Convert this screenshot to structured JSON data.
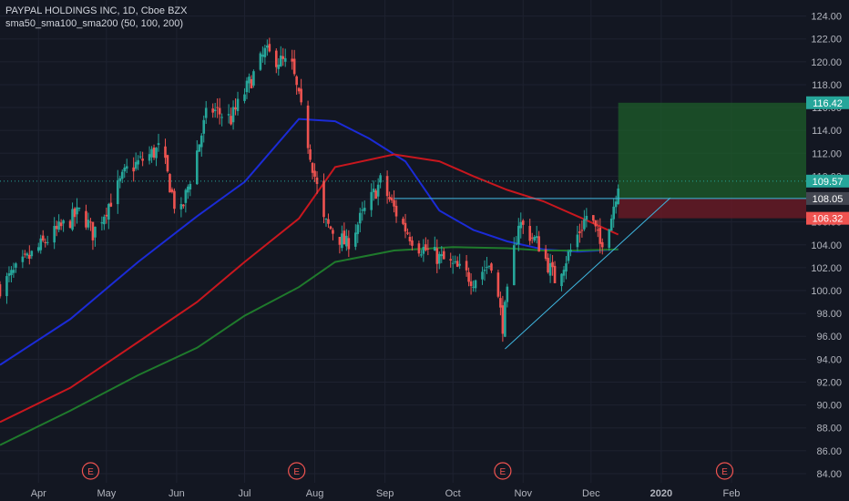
{
  "header": {
    "symbol_line": "PAYPAL HOLDINGS INC, 1D, Cboe BZX",
    "indicator_line": "sma50_sma100_sma200 (50, 100, 200)"
  },
  "colors": {
    "background": "#131722",
    "up_candle": "#26a69a",
    "down_candle": "#ef5350",
    "sma50": "#1b2bd6",
    "sma100": "#c8171e",
    "sma200": "#1f7a2c",
    "trendline": "#3fb7e0",
    "profit_zone": "#1e5e2a",
    "loss_zone": "#6b1a26"
  },
  "chart_data": {
    "type": "candlestick",
    "x_ticks": [
      "Apr",
      "May",
      "Jun",
      "Jul",
      "Aug",
      "Sep",
      "Oct",
      "Nov",
      "Dec",
      "2020",
      "Feb"
    ],
    "y_ticks": [
      "124.00",
      "122.00",
      "120.00",
      "118.00",
      "116.00",
      "114.00",
      "112.00",
      "110.00",
      "108.00",
      "106.00",
      "104.00",
      "102.00",
      "100.00",
      "98.00",
      "96.00",
      "94.00",
      "92.00",
      "90.00",
      "88.00",
      "86.00",
      "84.00"
    ],
    "ylim": [
      83.2,
      125.4
    ],
    "price_labels": [
      {
        "text": "116.42",
        "value": 116.42,
        "color": "#26a69a"
      },
      {
        "text": "109.57",
        "value": 109.57,
        "color": "#26a69a"
      },
      {
        "text": "108.05",
        "value": 108.05,
        "color": "#434651"
      },
      {
        "text": "106.32",
        "value": 106.32,
        "color": "#ef5350"
      }
    ],
    "earnings_markers": [
      {
        "label": "E",
        "date": "2019-04-24"
      },
      {
        "label": "E",
        "date": "2019-07-24"
      },
      {
        "label": "E",
        "date": "2019-10-23"
      },
      {
        "label": "E",
        "date": "2020-01-29"
      }
    ],
    "position": {
      "entry": 108.05,
      "target": 116.42,
      "stop": 106.32,
      "start": "2019-12-13",
      "end": "2020-03-05"
    },
    "horizontal_line": {
      "value": 108.05,
      "start": "2019-09-05",
      "end": "2020-03-05"
    },
    "trendline": {
      "from": [
        "2019-10-24",
        94.9
      ],
      "to": [
        "2020-01-05",
        108.1
      ]
    },
    "series": [
      {
        "name": "sma50",
        "points": [
          [
            "2019-03-15",
            93.5
          ],
          [
            "2019-04-15",
            97.5
          ],
          [
            "2019-05-15",
            102.5
          ],
          [
            "2019-06-10",
            106.5
          ],
          [
            "2019-07-01",
            109.5
          ],
          [
            "2019-07-25",
            115.0
          ],
          [
            "2019-08-10",
            114.8
          ],
          [
            "2019-08-25",
            113.3
          ],
          [
            "2019-09-10",
            111.3
          ],
          [
            "2019-09-25",
            107.0
          ],
          [
            "2019-10-10",
            105.3
          ],
          [
            "2019-10-25",
            104.3
          ],
          [
            "2019-11-10",
            103.6
          ],
          [
            "2019-11-25",
            103.4
          ],
          [
            "2019-12-13",
            103.6
          ]
        ]
      },
      {
        "name": "sma100",
        "points": [
          [
            "2019-03-15",
            88.5
          ],
          [
            "2019-04-15",
            91.5
          ],
          [
            "2019-05-15",
            95.5
          ],
          [
            "2019-06-10",
            99.0
          ],
          [
            "2019-07-01",
            102.5
          ],
          [
            "2019-07-25",
            106.3
          ],
          [
            "2019-08-10",
            110.8
          ],
          [
            "2019-09-05",
            111.9
          ],
          [
            "2019-09-25",
            111.3
          ],
          [
            "2019-10-10",
            110.0
          ],
          [
            "2019-10-25",
            108.8
          ],
          [
            "2019-11-10",
            107.8
          ],
          [
            "2019-11-25",
            106.5
          ],
          [
            "2019-12-13",
            104.9
          ]
        ]
      },
      {
        "name": "sma200",
        "points": [
          [
            "2019-03-15",
            86.5
          ],
          [
            "2019-04-15",
            89.5
          ],
          [
            "2019-05-15",
            92.6
          ],
          [
            "2019-06-10",
            95.0
          ],
          [
            "2019-07-01",
            97.8
          ],
          [
            "2019-07-25",
            100.3
          ],
          [
            "2019-08-10",
            102.5
          ],
          [
            "2019-09-05",
            103.5
          ],
          [
            "2019-10-01",
            103.8
          ],
          [
            "2019-10-25",
            103.7
          ],
          [
            "2019-11-10",
            103.5
          ],
          [
            "2019-11-25",
            103.5
          ],
          [
            "2019-12-13",
            103.6
          ]
        ]
      }
    ]
  }
}
